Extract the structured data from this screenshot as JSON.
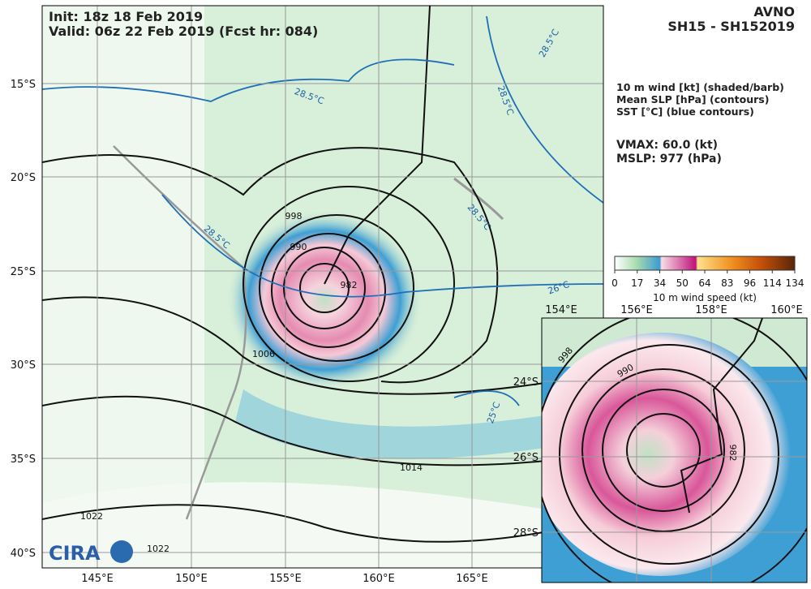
{
  "header": {
    "init": "Init:   18z 18 Feb 2019",
    "valid": "Valid: 06z 22 Feb 2019 (Fcst hr: 084)",
    "model": "AVNO",
    "storm": "SH15 - SH152019"
  },
  "legend": {
    "lines": [
      "10 m wind [kt] (shaded/barb)",
      "Mean SLP [hPa] (contours)",
      "SST [°C] (blue contours)"
    ],
    "vmax": "VMAX:  60.0 (kt)",
    "mslp": "MSLP:  977 (hPa)"
  },
  "colorbar": {
    "ticks": [
      0,
      17,
      34,
      50,
      64,
      83,
      96,
      114,
      134
    ],
    "label": "10 m wind speed (kt)"
  },
  "map": {
    "lat_labels": [
      "15°S",
      "20°S",
      "25°S",
      "30°S",
      "35°S",
      "40°S"
    ],
    "lon_labels": [
      "145°E",
      "150°E",
      "155°E",
      "160°E",
      "165°E"
    ],
    "slp_labels": [
      "998",
      "990",
      "982",
      "1006",
      "1014",
      "1022",
      "1022"
    ],
    "sst_labels": [
      "28.5°C",
      "28.5°C",
      "28.5°C",
      "28.5°C",
      "28.5°C",
      "26°C",
      "25°C"
    ]
  },
  "inset": {
    "lon_labels": [
      "154°E",
      "156°E",
      "158°E",
      "160°E"
    ],
    "lat_labels": [
      "24°S",
      "26°S",
      "28°S"
    ],
    "slp_labels": [
      "998",
      "990",
      "982"
    ]
  },
  "logo": "CIRA"
}
